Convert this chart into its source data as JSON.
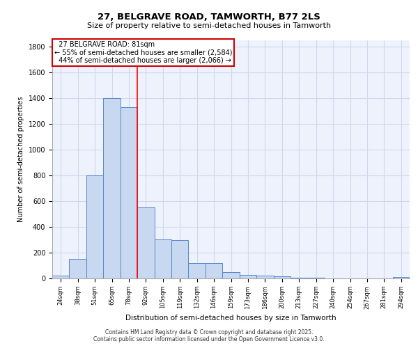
{
  "title_line1": "27, BELGRAVE ROAD, TAMWORTH, B77 2LS",
  "title_line2": "Size of property relative to semi-detached houses in Tamworth",
  "xlabel": "Distribution of semi-detached houses by size in Tamworth",
  "ylabel": "Number of semi-detached properties",
  "categories": [
    "24sqm",
    "38sqm",
    "51sqm",
    "65sqm",
    "78sqm",
    "92sqm",
    "105sqm",
    "119sqm",
    "132sqm",
    "146sqm",
    "159sqm",
    "173sqm",
    "186sqm",
    "200sqm",
    "213sqm",
    "227sqm",
    "240sqm",
    "254sqm",
    "267sqm",
    "281sqm",
    "294sqm"
  ],
  "values": [
    20,
    150,
    800,
    1400,
    1330,
    550,
    300,
    295,
    120,
    120,
    50,
    25,
    20,
    15,
    5,
    5,
    2,
    2,
    2,
    2,
    10
  ],
  "bar_color": "#c8d8f0",
  "bar_edge_color": "#5588cc",
  "grid_color": "#d0d8ec",
  "bg_color": "#eef2fc",
  "red_line_x": 4.5,
  "property_label": "27 BELGRAVE ROAD: 81sqm",
  "smaller_pct": "55%",
  "smaller_count": "2,584",
  "larger_pct": "44%",
  "larger_count": "2,066",
  "annotation_box_color": "#cc0000",
  "ylim": [
    0,
    1850
  ],
  "yticks": [
    0,
    200,
    400,
    600,
    800,
    1000,
    1200,
    1400,
    1600,
    1800
  ],
  "footer_line1": "Contains HM Land Registry data © Crown copyright and database right 2025.",
  "footer_line2": "Contains public sector information licensed under the Open Government Licence v3.0."
}
